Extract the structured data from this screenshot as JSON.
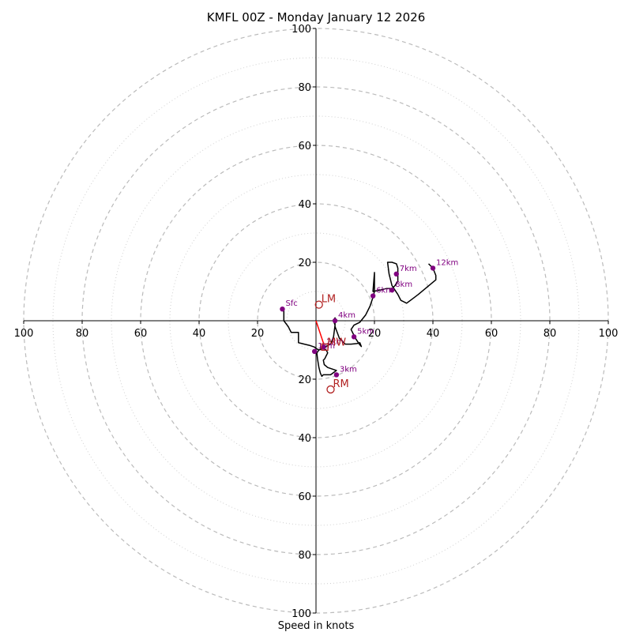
{
  "title": "KMFL 00Z - Monday January 12 2026",
  "chart_data": {
    "type": "hodograph",
    "xlabel": "Speed in knots",
    "max_speed": 100,
    "ring_step": 20,
    "minor_ring_offset": 10,
    "x_ticks": [
      "100",
      "80",
      "60",
      "40",
      "20",
      "20",
      "40",
      "60",
      "80",
      "100"
    ],
    "y_ticks": [
      "100",
      "80",
      "60",
      "40",
      "20",
      "20",
      "40",
      "60",
      "80",
      "100"
    ],
    "tick_values_x": [
      -100,
      -80,
      -60,
      -40,
      -20,
      20,
      40,
      60,
      80,
      100
    ],
    "tick_values_y": [
      100,
      80,
      60,
      40,
      20,
      -20,
      -40,
      -60,
      -80,
      -100
    ],
    "colors": {
      "trace": "#000000",
      "height": "#800080",
      "motion": "#b22222",
      "shear": "#ff0000",
      "grid": "#bbbbbb"
    },
    "trace_uv": [
      [
        -11,
        4
      ],
      [
        -11,
        0
      ],
      [
        -9.5,
        -2
      ],
      [
        -8.5,
        -4
      ],
      [
        -6,
        -4
      ],
      [
        -6,
        -7.5
      ],
      [
        -4,
        -8
      ],
      [
        -2,
        -8.5
      ],
      [
        -0.5,
        -9
      ],
      [
        0,
        -9.5
      ],
      [
        1,
        -10
      ],
      [
        2.5,
        -9.5
      ],
      [
        3.5,
        -10
      ],
      [
        4,
        -11
      ],
      [
        3.5,
        -12
      ],
      [
        3,
        -13
      ],
      [
        2.5,
        -13.5
      ],
      [
        2.8,
        -15
      ],
      [
        4,
        -16
      ],
      [
        7,
        -17
      ],
      [
        5,
        -18.5
      ],
      [
        2.5,
        -18.5
      ],
      [
        2,
        -19
      ],
      [
        1.5,
        -18
      ],
      [
        1,
        -16
      ],
      [
        0.5,
        -13
      ],
      [
        0.3,
        -11
      ],
      [
        1,
        -10
      ],
      [
        3,
        -9
      ],
      [
        5,
        -8
      ],
      [
        6,
        -5.5
      ],
      [
        6.5,
        -1.5
      ],
      [
        6,
        0
      ],
      [
        6.5,
        1
      ],
      [
        6.5,
        -2
      ],
      [
        8,
        -6
      ],
      [
        10,
        -8
      ],
      [
        12,
        -8
      ],
      [
        14,
        -7.8
      ],
      [
        15,
        -7.5
      ],
      [
        15.5,
        -8.8
      ],
      [
        14.8,
        -8
      ],
      [
        13.5,
        -6
      ],
      [
        12,
        -3
      ],
      [
        13,
        -1.5
      ],
      [
        15,
        -0.5
      ],
      [
        17,
        2
      ],
      [
        18.5,
        5
      ],
      [
        19.5,
        8
      ],
      [
        20,
        10
      ],
      [
        20,
        12
      ],
      [
        20,
        14
      ],
      [
        20,
        16.5
      ],
      [
        19.5,
        10
      ],
      [
        22,
        10.5
      ],
      [
        24,
        11
      ],
      [
        26,
        11
      ],
      [
        27,
        12
      ],
      [
        28,
        13.5
      ],
      [
        28,
        15.5
      ],
      [
        28,
        18
      ],
      [
        27.5,
        19.5
      ],
      [
        26,
        20
      ],
      [
        24.5,
        20
      ],
      [
        25,
        16
      ],
      [
        26,
        12
      ],
      [
        28,
        9
      ],
      [
        29,
        7
      ],
      [
        31,
        6
      ],
      [
        33,
        7.5
      ],
      [
        35,
        9
      ],
      [
        38,
        11.5
      ],
      [
        41,
        14
      ],
      [
        41,
        15.5
      ],
      [
        40,
        18
      ],
      [
        38.5,
        19.5
      ]
    ],
    "heights": [
      {
        "label": "Sfc",
        "u": -11.5,
        "v": 4
      },
      {
        "label": "1km",
        "u": -0.5,
        "v": -10.5
      },
      {
        "label": "2km",
        "u": 2.5,
        "v": -9
      },
      {
        "label": "3km",
        "u": 7,
        "v": -18.5
      },
      {
        "label": "4km",
        "u": 6.5,
        "v": 0
      },
      {
        "label": "5km",
        "u": 13,
        "v": -5.5
      },
      {
        "label": "6km",
        "u": 19.5,
        "v": 8.5
      },
      {
        "label": "7km",
        "u": 27.5,
        "v": 16
      },
      {
        "label": "8km",
        "u": 26,
        "v": 10.5
      },
      {
        "label": "12km",
        "u": 40,
        "v": 18
      }
    ],
    "motions": [
      {
        "label": "LM",
        "u": 1,
        "v": 5.5
      },
      {
        "label": "RM",
        "u": 5,
        "v": -23.5
      },
      {
        "label": "MW",
        "u": 3,
        "v": -9
      }
    ],
    "shear_vector": {
      "from_uv": [
        0,
        0
      ],
      "to_uv": [
        3,
        -9
      ]
    }
  }
}
